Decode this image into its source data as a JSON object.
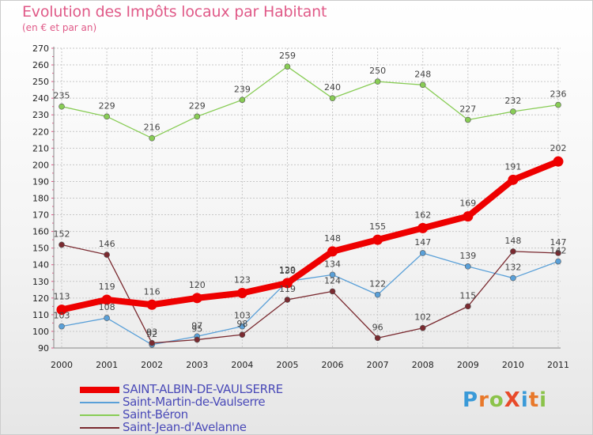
{
  "title": "Evolution des Impôts locaux par Habitant",
  "subtitle": "(en € et par an)",
  "logo": {
    "text": "ProXiti",
    "letters": [
      "P",
      "r",
      "o",
      "X",
      "i",
      "t",
      "i"
    ],
    "colors": [
      "#3a9ad8",
      "#e8782a",
      "#8bc34a",
      "#e84a2a",
      "#3a9ad8",
      "#e8782a",
      "#8bc34a"
    ]
  },
  "chart_data": {
    "type": "line",
    "title": "Evolution des Impôts locaux par Habitant",
    "subtitle": "(en € et par an)",
    "xlabel": "",
    "ylabel": "",
    "x": [
      "2000",
      "2001",
      "2002",
      "2003",
      "2004",
      "2005",
      "2006",
      "2007",
      "2008",
      "2009",
      "2010",
      "2011"
    ],
    "ylim": [
      90,
      270
    ],
    "yticks": [
      90,
      100,
      110,
      120,
      130,
      140,
      150,
      160,
      170,
      180,
      190,
      200,
      210,
      220,
      230,
      240,
      250,
      260,
      270
    ],
    "grid": true,
    "legend_position": "bottom-left",
    "series": [
      {
        "name": "SAINT-ALBIN-DE-VAULSERRE",
        "color": "#ee0000",
        "values": [
          113,
          119,
          116,
          120,
          123,
          129,
          148,
          155,
          162,
          169,
          191,
          202
        ],
        "labels": [
          "113",
          "119",
          "116",
          "120",
          "123",
          "129",
          "148",
          "155",
          "162",
          "169",
          "191",
          "202"
        ],
        "bold": true
      },
      {
        "name": "Saint-Martin-de-Vaulserre",
        "color": "#5aa0d8",
        "values": [
          103,
          108,
          92,
          97,
          103,
          130,
          134,
          122,
          147,
          139,
          132,
          142
        ],
        "labels": [
          "103",
          "108",
          "92",
          "97",
          "103",
          "130",
          "134",
          "122",
          "147",
          "139",
          "132",
          "142"
        ],
        "bold": false
      },
      {
        "name": "Saint-Béron",
        "color": "#88cc55",
        "values": [
          235,
          229,
          216,
          229,
          239,
          259,
          240,
          250,
          248,
          227,
          232,
          236
        ],
        "labels": [
          "235",
          "229",
          "216",
          "229",
          "239",
          "259",
          "240",
          "250",
          "248",
          "227",
          "232",
          "236"
        ],
        "bold": false
      },
      {
        "name": "Saint-Jean-d'Avelanne",
        "color": "#7a2a30",
        "values": [
          152,
          146,
          93,
          95,
          98,
          119,
          124,
          96,
          102,
          115,
          148,
          147
        ],
        "labels": [
          "152",
          "146",
          "93",
          "95",
          "98",
          "119",
          "124",
          "96",
          "102",
          "115",
          "148",
          "147"
        ],
        "bold": false
      }
    ]
  }
}
